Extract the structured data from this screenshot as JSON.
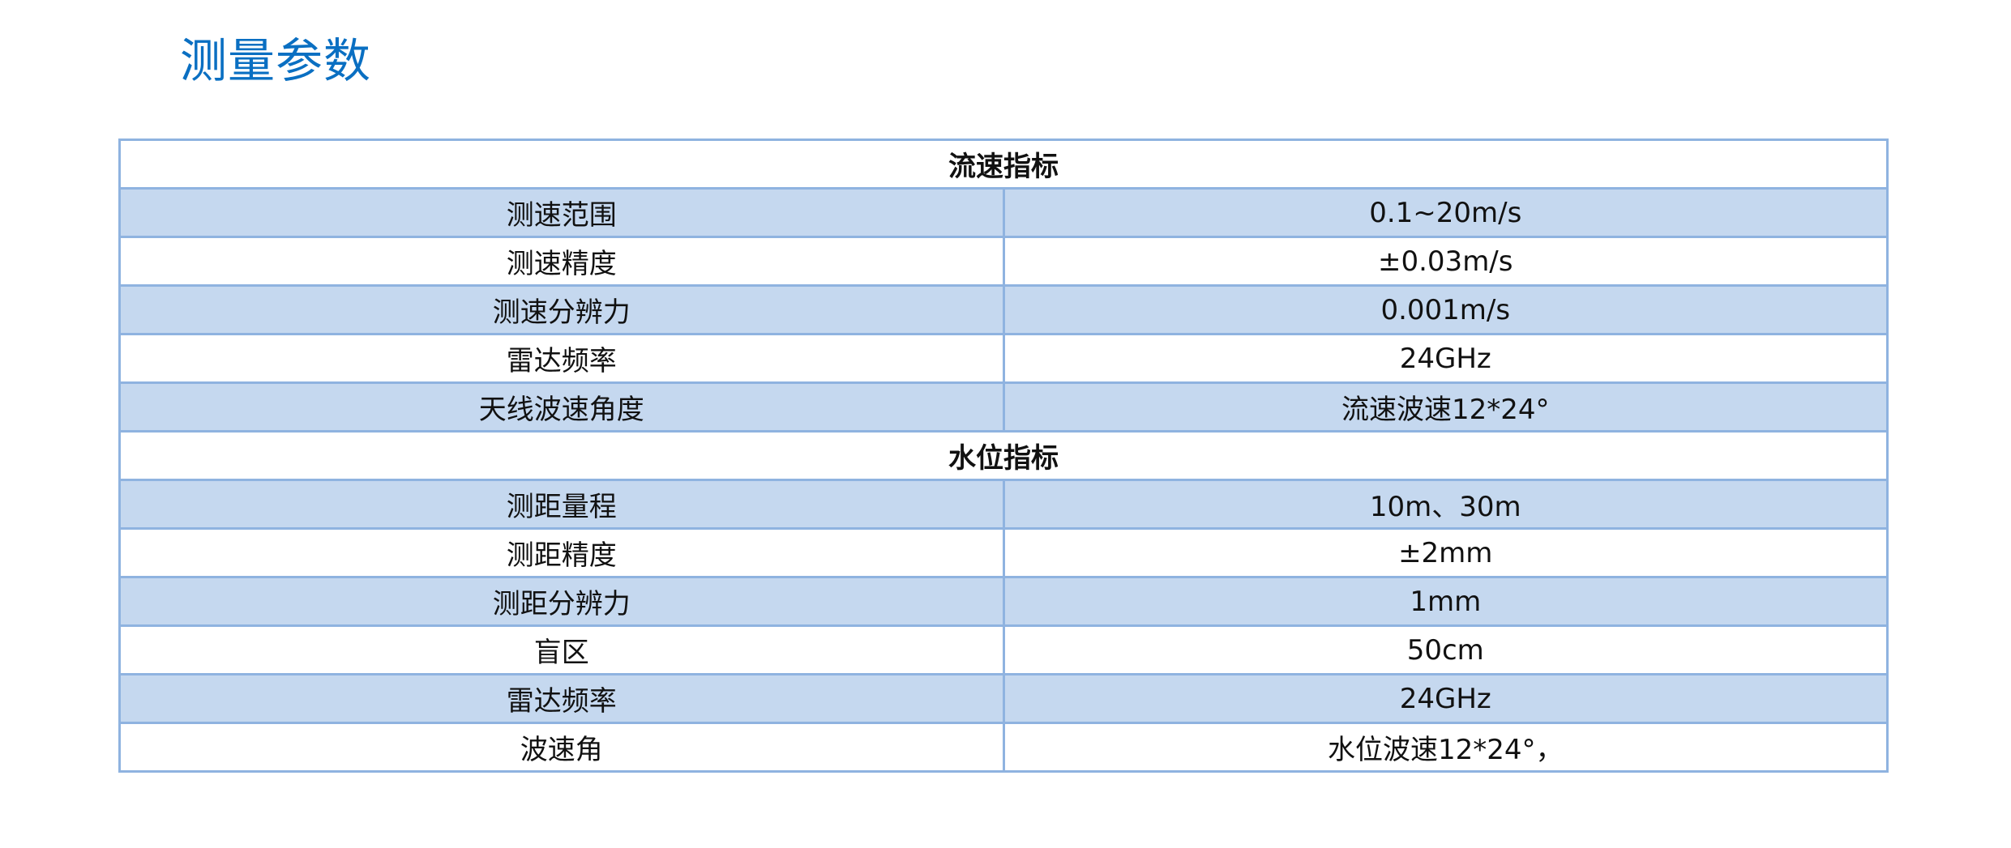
{
  "title": "测量参数",
  "colors": {
    "title": "#0a6fc2",
    "border": "#8fb3e0",
    "shade": "#c5d8ef"
  },
  "sections": [
    {
      "heading": "流速指标",
      "rows": [
        {
          "label": "测速范围",
          "value": "0.1~20m/s"
        },
        {
          "label": "测速精度",
          "value": "±0.03m/s"
        },
        {
          "label": "测速分辨力",
          "value": "0.001m/s"
        },
        {
          "label": "雷达频率",
          "value": "24GHz"
        },
        {
          "label": "天线波速角度",
          "value": "流速波速12*24°"
        }
      ]
    },
    {
      "heading": "水位指标",
      "rows": [
        {
          "label": "测距量程",
          "value": "10m、30m"
        },
        {
          "label": "测距精度",
          "value": "±2mm"
        },
        {
          "label": "测距分辨力",
          "value": "1mm"
        },
        {
          "label": "盲区",
          "value": "50cm"
        },
        {
          "label": "雷达频率",
          "value": "24GHz"
        },
        {
          "label": "波速角",
          "value": "水位波速12*24°，"
        }
      ]
    }
  ]
}
